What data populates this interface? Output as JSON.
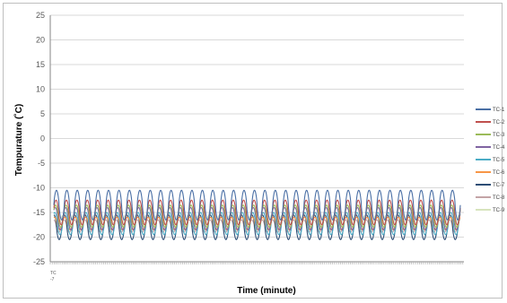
{
  "chart_data": {
    "type": "line",
    "title": "",
    "xlabel": "Time (minute)",
    "ylabel": "Tempurature  (˚C)",
    "ylim": [
      -25,
      25
    ],
    "yticks": [
      25,
      20,
      15,
      10,
      5,
      0,
      -5,
      -10,
      -15,
      -20,
      -25
    ],
    "x_first_tick_label": [
      "TC",
      "-7"
    ],
    "grid": "horizontal",
    "legend_position": "right",
    "cycles": 39,
    "series": [
      {
        "name": "TC-1",
        "color": "#4a6fa5",
        "min": -16.5,
        "max": -10.5
      },
      {
        "name": "TC-2",
        "color": "#c0504d",
        "min": -17.5,
        "max": -12.5
      },
      {
        "name": "TC-3",
        "color": "#9bbb59",
        "min": -18.0,
        "max": -13.5
      },
      {
        "name": "TC-4",
        "color": "#8064a2",
        "min": -18.5,
        "max": -14.0
      },
      {
        "name": "TC-5",
        "color": "#4bacc6",
        "min": -19.5,
        "max": -15.0
      },
      {
        "name": "TC-6",
        "color": "#f79646",
        "min": -18.5,
        "max": -16.0
      },
      {
        "name": "TC-7",
        "color": "#2c4d75",
        "min": -20.5,
        "max": -15.5
      },
      {
        "name": "TC-8",
        "color": "#c3a4a6",
        "min": -19.0,
        "max": -16.5
      },
      {
        "name": "TC-9",
        "color": "#d7e4bd",
        "min": -17.5,
        "max": -15.5
      }
    ]
  }
}
